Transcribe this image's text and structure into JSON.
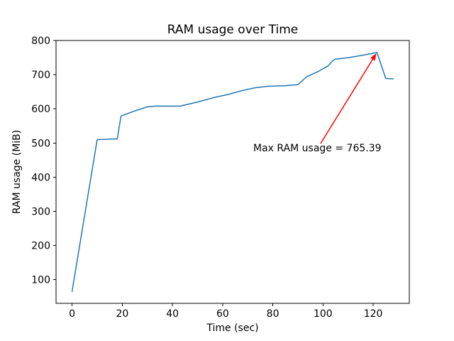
{
  "figure": {
    "background": "#ffffff",
    "spine_color": "#000000",
    "text_color": "#000000"
  },
  "chart_data": {
    "type": "line",
    "title": "RAM usage over Time",
    "xlabel": "Time (sec)",
    "ylabel": "RAM usage (MiB)",
    "xlim": [
      -6.4,
      134.4
    ],
    "ylim": [
      30,
      800.4
    ],
    "xticks": [
      0,
      20,
      40,
      60,
      80,
      100,
      120
    ],
    "yticks": [
      100,
      200,
      300,
      400,
      500,
      600,
      700,
      800
    ],
    "grid": false,
    "legend": "none",
    "line_color": "#1f77b4",
    "line_width": 1.5,
    "series": [
      {
        "name": "RAM usage",
        "x": [
          0,
          10,
          18,
          19.5,
          25,
          30,
          33,
          43,
          50,
          55,
          57,
          62,
          68,
          73,
          78,
          85,
          90,
          93.5,
          98.5,
          102,
          104,
          105,
          110,
          115,
          120,
          121.5,
          125,
          128
        ],
        "y": [
          65,
          510,
          512,
          579,
          594,
          606,
          608,
          608,
          620,
          630,
          634,
          642,
          654,
          662,
          666,
          668,
          671,
          694,
          711,
          726,
          742,
          746,
          750,
          756,
          763,
          765.39,
          689,
          688
        ]
      }
    ],
    "max_value": 765.39,
    "annotation": {
      "text": "Max RAM usage = 765.39",
      "color": "#ff0000",
      "arrow_tip_xy": [
        121.3,
        763.0
      ],
      "arrow_tail_xy": [
        99.0,
        498.0
      ],
      "text_xy": [
        72.2,
        496.0
      ]
    }
  }
}
